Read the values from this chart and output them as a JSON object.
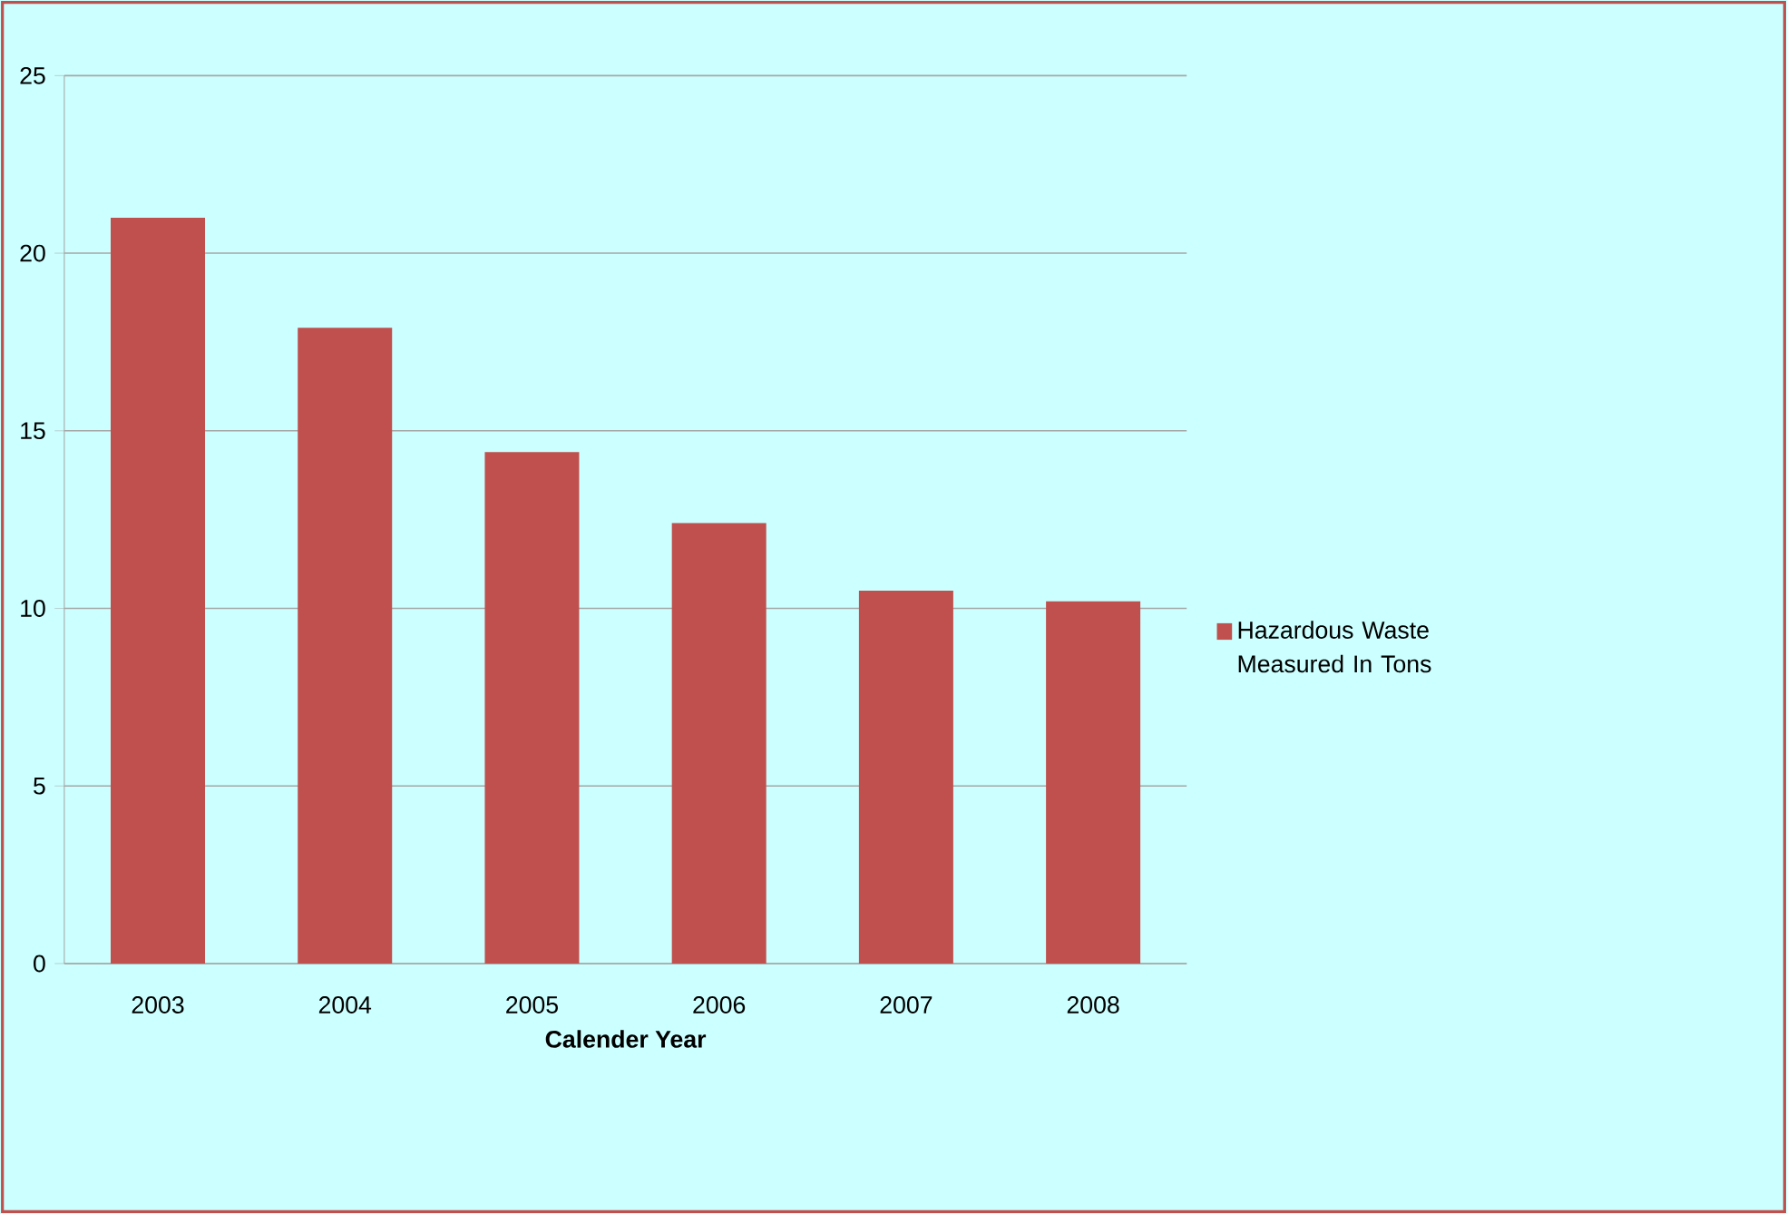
{
  "chart_data": {
    "type": "bar",
    "xlabel": "Calender Year",
    "categories": [
      "2003",
      "2004",
      "2005",
      "2006",
      "2007",
      "2008"
    ],
    "series": [
      {
        "name": "Hazardous Waste Measured In Tons",
        "color": "#c0504d",
        "values": [
          21.0,
          17.9,
          14.4,
          12.4,
          10.5,
          10.2
        ]
      }
    ],
    "ylim": [
      0,
      25
    ],
    "yticks": [
      0,
      5,
      10,
      15,
      20,
      25
    ],
    "grid": "y",
    "legend": "right"
  }
}
